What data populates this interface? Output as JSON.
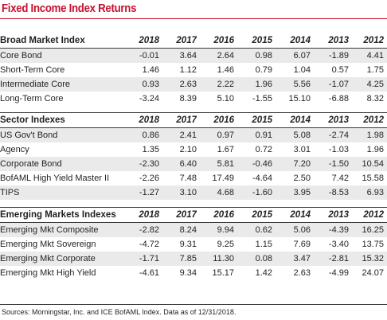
{
  "title": "Fixed Income Index Returns",
  "years": [
    "2018",
    "2017",
    "2016",
    "2015",
    "2014",
    "2013",
    "2012"
  ],
  "sections": [
    {
      "header": "Broad Market Index",
      "rows": [
        {
          "name": "Core Bond",
          "values": [
            "-0.01",
            "3.64",
            "2.64",
            "0.98",
            "6.07",
            "-1.89",
            "4.41"
          ]
        },
        {
          "name": "Short-Term Core",
          "values": [
            "1.46",
            "1.12",
            "1.46",
            "0.79",
            "1.04",
            "0.57",
            "1.75"
          ]
        },
        {
          "name": "Intermediate Core",
          "values": [
            "0.93",
            "2.63",
            "2.22",
            "1.96",
            "5.56",
            "-1.07",
            "4.25"
          ]
        },
        {
          "name": "Long-Term Core",
          "values": [
            "-3.24",
            "8.39",
            "5.10",
            "-1.55",
            "15.10",
            "-6.88",
            "8.32"
          ]
        }
      ]
    },
    {
      "header": "Sector Indexes",
      "rows": [
        {
          "name": "US Gov't Bond",
          "values": [
            "0.86",
            "2.41",
            "0.97",
            "0.91",
            "5.08",
            "-2.74",
            "1.98"
          ]
        },
        {
          "name": "Agency",
          "values": [
            "1.35",
            "2.10",
            "1.67",
            "0.72",
            "3.01",
            "-1.03",
            "1.96"
          ]
        },
        {
          "name": "Corporate Bond",
          "values": [
            "-2.30",
            "6.40",
            "5.81",
            "-0.46",
            "7.20",
            "-1.50",
            "10.54"
          ]
        },
        {
          "name": "BofAML High Yield Master II",
          "values": [
            "-2.26",
            "7.48",
            "17.49",
            "-4.64",
            "2.50",
            "7.42",
            "15.58"
          ]
        },
        {
          "name": "TIPS",
          "values": [
            "-1.27",
            "3.10",
            "4.68",
            "-1.60",
            "3.95",
            "-8.53",
            "6.93"
          ]
        }
      ]
    },
    {
      "header": "Emerging Markets Indexes",
      "rows": [
        {
          "name": "Emerging Mkt Composite",
          "values": [
            "-2.82",
            "8.24",
            "9.94",
            "0.62",
            "5.06",
            "-4.39",
            "16.25"
          ]
        },
        {
          "name": "Emerging Mkt Sovereign",
          "values": [
            "-4.72",
            "9.31",
            "9.25",
            "1.15",
            "7.69",
            "-3.40",
            "13.75"
          ]
        },
        {
          "name": "Emerging Mkt Corporate",
          "values": [
            "-1.71",
            "7.85",
            "11.30",
            "0.08",
            "3.47",
            "-2.81",
            "15.32"
          ]
        },
        {
          "name": "Emerging Mkt High Yield",
          "values": [
            "-4.61",
            "9.34",
            "15.17",
            "1.42",
            "2.63",
            "-4.99",
            "24.07"
          ]
        }
      ]
    }
  ],
  "source": "Sources: Morningstar, Inc. and ICE BofAML Index. Data as of 12/31/2018."
}
